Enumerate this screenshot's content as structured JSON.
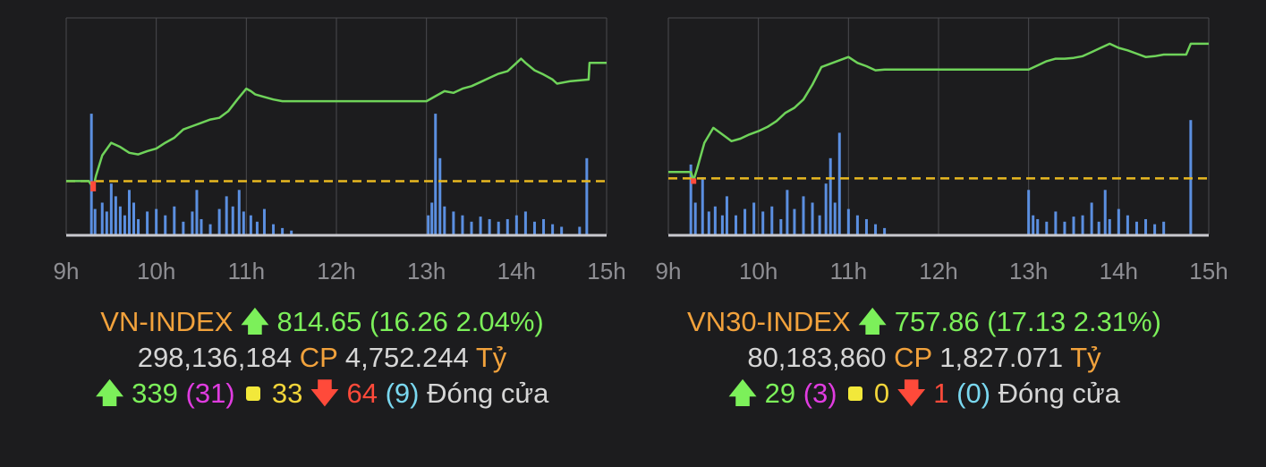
{
  "colors": {
    "background": "#1c1c1e",
    "grid": "#4a4a4e",
    "price_line": "#6fd35a",
    "reference_line": "#e8b820",
    "volume_bar": "#5b8fe0",
    "up": "#7cf05a",
    "down": "#ff4a3a",
    "label_orange": "#f2a23c"
  },
  "icons": {
    "up": "arrow-up-icon",
    "down": "arrow-down-icon",
    "unchanged": "square-icon"
  },
  "panels": [
    {
      "index_name": "VN-INDEX",
      "value": "814.65",
      "change_text": "(16.26 2.04%)",
      "volume": "298,136,184",
      "volume_unit": "CP",
      "turnover": "4,752.244",
      "turnover_unit": "Tỷ",
      "advancers": "339",
      "ceiling": "(31)",
      "unchanged": "33",
      "decliners": "64",
      "floor": "(9)",
      "status": "Đóng cửa"
    },
    {
      "index_name": "VN30-INDEX",
      "value": "757.86",
      "change_text": "(17.13 2.31%)",
      "volume": "80,183,860",
      "volume_unit": "CP",
      "turnover": "1,827.071",
      "turnover_unit": "Tỷ",
      "advancers": "29",
      "ceiling": "(3)",
      "unchanged": "0",
      "decliners": "1",
      "floor": "(0)",
      "status": "Đóng cửa"
    }
  ],
  "chart_data": [
    {
      "type": "line",
      "x_tick_labels": [
        "9h",
        "10h",
        "11h",
        "12h",
        "13h",
        "14h",
        "15h"
      ],
      "x_range_hours": [
        9,
        15
      ],
      "reference": 798.39,
      "y_range": [
        792,
        818
      ],
      "grid": true,
      "price_series": [
        [
          9.0,
          798.4
        ],
        [
          9.25,
          798.4
        ],
        [
          9.3,
          797.6
        ],
        [
          9.33,
          799.0
        ],
        [
          9.4,
          801.5
        ],
        [
          9.5,
          803.0
        ],
        [
          9.6,
          802.5
        ],
        [
          9.7,
          801.8
        ],
        [
          9.8,
          801.6
        ],
        [
          9.9,
          802.0
        ],
        [
          10.0,
          802.3
        ],
        [
          10.1,
          803.0
        ],
        [
          10.2,
          803.6
        ],
        [
          10.3,
          804.6
        ],
        [
          10.4,
          805.0
        ],
        [
          10.5,
          805.4
        ],
        [
          10.6,
          805.8
        ],
        [
          10.7,
          806.0
        ],
        [
          10.8,
          806.8
        ],
        [
          10.9,
          808.2
        ],
        [
          11.0,
          809.5
        ],
        [
          11.05,
          809.2
        ],
        [
          11.1,
          808.8
        ],
        [
          11.2,
          808.5
        ],
        [
          11.3,
          808.2
        ],
        [
          11.4,
          808.0
        ],
        [
          11.5,
          808.0
        ],
        [
          12.0,
          808.0
        ],
        [
          12.5,
          808.0
        ],
        [
          13.0,
          808.0
        ],
        [
          13.1,
          808.6
        ],
        [
          13.2,
          809.2
        ],
        [
          13.3,
          809.0
        ],
        [
          13.4,
          809.5
        ],
        [
          13.5,
          809.8
        ],
        [
          13.6,
          810.3
        ],
        [
          13.7,
          810.8
        ],
        [
          13.8,
          811.3
        ],
        [
          13.9,
          811.6
        ],
        [
          14.0,
          812.6
        ],
        [
          14.05,
          813.1
        ],
        [
          14.1,
          812.6
        ],
        [
          14.2,
          811.7
        ],
        [
          14.3,
          811.2
        ],
        [
          14.4,
          810.6
        ],
        [
          14.45,
          810.1
        ],
        [
          14.6,
          810.4
        ],
        [
          14.8,
          810.6
        ],
        [
          14.81,
          812.6
        ],
        [
          15.0,
          812.6
        ]
      ],
      "volume_hours": [
        9.28,
        9.32,
        9.4,
        9.45,
        9.5,
        9.55,
        9.6,
        9.65,
        9.7,
        9.75,
        9.8,
        9.9,
        10.0,
        10.1,
        10.2,
        10.3,
        10.4,
        10.45,
        10.5,
        10.6,
        10.7,
        10.78,
        10.85,
        10.92,
        10.97,
        11.05,
        11.12,
        11.2,
        11.3,
        11.4,
        11.5,
        13.02,
        13.06,
        13.1,
        13.15,
        13.2,
        13.3,
        13.4,
        13.5,
        13.6,
        13.7,
        13.8,
        13.9,
        14.0,
        14.1,
        14.2,
        14.3,
        14.4,
        14.5,
        14.7,
        14.78
      ],
      "volume_values": [
        95,
        20,
        25,
        18,
        40,
        30,
        22,
        15,
        35,
        25,
        12,
        18,
        20,
        15,
        22,
        10,
        18,
        35,
        12,
        8,
        20,
        30,
        22,
        35,
        18,
        15,
        10,
        20,
        8,
        5,
        3,
        15,
        25,
        95,
        60,
        22,
        18,
        15,
        10,
        14,
        12,
        10,
        12,
        15,
        18,
        10,
        12,
        8,
        6,
        6,
        60
      ],
      "volume_max": 100
    },
    {
      "type": "line",
      "x_tick_labels": [
        "9h",
        "10h",
        "11h",
        "12h",
        "13h",
        "14h",
        "15h"
      ],
      "x_range_hours": [
        9,
        15
      ],
      "reference": 740.73,
      "y_range": [
        734,
        760
      ],
      "grid": true,
      "price_series": [
        [
          9.0,
          741.5
        ],
        [
          9.25,
          741.5
        ],
        [
          9.28,
          740.5
        ],
        [
          9.32,
          741.9
        ],
        [
          9.4,
          745.0
        ],
        [
          9.5,
          746.8
        ],
        [
          9.6,
          746.0
        ],
        [
          9.7,
          745.2
        ],
        [
          9.8,
          745.5
        ],
        [
          9.9,
          746.0
        ],
        [
          10.0,
          746.4
        ],
        [
          10.1,
          746.9
        ],
        [
          10.2,
          747.6
        ],
        [
          10.3,
          748.6
        ],
        [
          10.4,
          749.2
        ],
        [
          10.5,
          750.2
        ],
        [
          10.6,
          752.0
        ],
        [
          10.7,
          754.1
        ],
        [
          11.0,
          755.3
        ],
        [
          11.1,
          754.6
        ],
        [
          11.2,
          754.2
        ],
        [
          11.3,
          753.7
        ],
        [
          11.4,
          753.8
        ],
        [
          11.5,
          753.8
        ],
        [
          12.0,
          753.8
        ],
        [
          12.5,
          753.8
        ],
        [
          13.0,
          753.8
        ],
        [
          13.1,
          754.3
        ],
        [
          13.2,
          754.8
        ],
        [
          13.3,
          755.1
        ],
        [
          13.4,
          755.1
        ],
        [
          13.5,
          755.2
        ],
        [
          13.6,
          755.4
        ],
        [
          13.7,
          755.9
        ],
        [
          13.8,
          756.4
        ],
        [
          13.9,
          756.9
        ],
        [
          14.0,
          756.4
        ],
        [
          14.1,
          756.1
        ],
        [
          14.2,
          755.7
        ],
        [
          14.3,
          755.3
        ],
        [
          14.4,
          755.4
        ],
        [
          14.5,
          755.6
        ],
        [
          14.75,
          755.6
        ],
        [
          14.8,
          756.9
        ],
        [
          15.0,
          756.9
        ]
      ],
      "volume_hours": [
        9.25,
        9.3,
        9.38,
        9.45,
        9.52,
        9.6,
        9.65,
        9.75,
        9.85,
        9.95,
        10.05,
        10.15,
        10.25,
        10.32,
        10.4,
        10.5,
        10.6,
        10.68,
        10.75,
        10.8,
        10.85,
        10.9,
        11.0,
        11.1,
        11.2,
        11.3,
        11.4,
        13.0,
        13.05,
        13.1,
        13.2,
        13.3,
        13.4,
        13.5,
        13.6,
        13.7,
        13.78,
        13.85,
        13.9,
        14.0,
        14.1,
        14.2,
        14.3,
        14.4,
        14.5,
        14.8
      ],
      "volume_values": [
        55,
        25,
        45,
        18,
        22,
        15,
        30,
        15,
        20,
        25,
        18,
        22,
        12,
        35,
        20,
        30,
        25,
        15,
        40,
        60,
        25,
        80,
        20,
        15,
        12,
        8,
        5,
        35,
        15,
        12,
        10,
        18,
        10,
        14,
        15,
        25,
        10,
        35,
        12,
        20,
        15,
        10,
        12,
        8,
        10,
        90
      ],
      "volume_max": 100
    }
  ]
}
